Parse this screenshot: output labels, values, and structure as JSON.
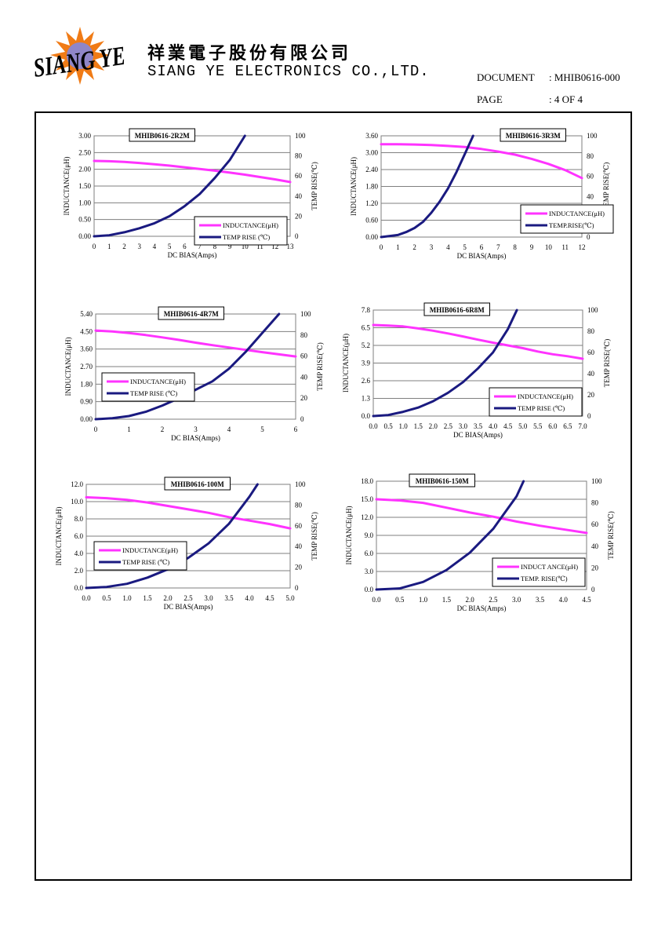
{
  "header": {
    "logo_text": "SIANG YE",
    "company_cn": "祥業電子股份有限公司",
    "company_en": "SIANG YE ELECTRONICS CO.,LTD.",
    "document_label": "DOCUMENT",
    "document_value": ": MHIB0616-000",
    "page_label": "PAGE",
    "page_value": ": 4 OF 4"
  },
  "colors": {
    "inductance": "#ff33ff",
    "temp": "#1a1a80",
    "grid": "#7f7f7f",
    "border": "#000000"
  },
  "chart_data": [
    {
      "type": "line",
      "title": "MHIB0616-2R2M",
      "xlabel": "DC BIAS(Amps)",
      "ylabel": "INDUCTANCE(μH)",
      "y2label": "TEMP RISE(℃)",
      "xlim": [
        0,
        13
      ],
      "xticks": [
        "0",
        "1",
        "2",
        "3",
        "4",
        "5",
        "6",
        "7",
        "8",
        "9",
        "10",
        "11",
        "12",
        "13"
      ],
      "ylim": [
        0,
        3
      ],
      "yticks": [
        "0.00",
        "0.50",
        "1.00",
        "1.50",
        "2.00",
        "2.50",
        "3.00"
      ],
      "y2lim": [
        0,
        100
      ],
      "y2ticks": [
        "0",
        "20",
        "40",
        "60",
        "80",
        "100"
      ],
      "grid": true,
      "legend_position": "bottom-right",
      "series": [
        {
          "name": "INDUCTANCE(μH)",
          "axis": "left",
          "x": [
            0,
            1,
            2,
            3,
            4,
            5,
            6,
            7,
            8,
            9,
            10,
            11,
            12,
            13
          ],
          "y": [
            2.25,
            2.24,
            2.22,
            2.19,
            2.15,
            2.11,
            2.06,
            2.01,
            1.96,
            1.9,
            1.84,
            1.77,
            1.7,
            1.62
          ]
        },
        {
          "name": "TEMP RISE (℃)",
          "axis": "right",
          "x": [
            0,
            1,
            2,
            3,
            4,
            5,
            6,
            7,
            8,
            9,
            10
          ],
          "y": [
            0,
            1,
            4,
            8,
            13,
            20,
            30,
            42,
            58,
            76,
            100
          ]
        }
      ]
    },
    {
      "type": "line",
      "title": "MHIB0616-3R3M",
      "xlabel": "DC BIAS(Amps)",
      "ylabel": "INDUCTANCE(μH)",
      "y2label": "TEMP RISE(℃)",
      "xlim": [
        0,
        12
      ],
      "xticks": [
        "0",
        "1",
        "2",
        "3",
        "4",
        "5",
        "6",
        "7",
        "8",
        "9",
        "10",
        "11",
        "12"
      ],
      "ylim": [
        0,
        3.6
      ],
      "yticks": [
        "0.00",
        "0.60",
        "1.20",
        "1.80",
        "2.40",
        "3.00",
        "3.60"
      ],
      "y2lim": [
        0,
        100
      ],
      "y2ticks": [
        "0",
        "20",
        "40",
        "60",
        "80",
        "100"
      ],
      "grid": true,
      "legend_position": "bottom-right",
      "series": [
        {
          "name": "INDUCTANCE(μH)",
          "axis": "left",
          "x": [
            0,
            1,
            2,
            3,
            4,
            5,
            6,
            7,
            8,
            9,
            10,
            11,
            12
          ],
          "y": [
            3.3,
            3.3,
            3.29,
            3.27,
            3.24,
            3.2,
            3.13,
            3.04,
            2.93,
            2.78,
            2.6,
            2.38,
            2.1
          ]
        },
        {
          "name": "TEMP.RISE(℃)",
          "axis": "right",
          "x": [
            0,
            1,
            1.5,
            2,
            2.5,
            3,
            3.5,
            4,
            4.5,
            5,
            5.5
          ],
          "y": [
            0,
            2,
            5,
            9,
            15,
            24,
            35,
            48,
            64,
            82,
            100
          ]
        }
      ]
    },
    {
      "type": "line",
      "title": "MHIB0616-4R7M",
      "xlabel": "DC BIAS(Amps)",
      "ylabel": "INDUCTANCE(μH)",
      "y2label": "TEMP RISE(℃)",
      "xlim": [
        0,
        6
      ],
      "xticks": [
        "0",
        "1",
        "2",
        "3",
        "4",
        "5",
        "6"
      ],
      "ylim": [
        0,
        5.4
      ],
      "yticks": [
        "0.00",
        "0.90",
        "1.80",
        "2.70",
        "3.60",
        "4.50",
        "5.40"
      ],
      "y2lim": [
        0,
        100
      ],
      "y2ticks": [
        "0",
        "20",
        "40",
        "60",
        "80",
        "100"
      ],
      "grid": true,
      "legend_position": "bottom-left",
      "series": [
        {
          "name": "INDUCTANCE(μH)",
          "axis": "left",
          "x": [
            0,
            0.5,
            1,
            1.5,
            2,
            2.5,
            3,
            3.5,
            4,
            4.5,
            5,
            5.5,
            6
          ],
          "y": [
            4.55,
            4.5,
            4.42,
            4.32,
            4.2,
            4.07,
            3.93,
            3.8,
            3.68,
            3.56,
            3.44,
            3.33,
            3.22
          ]
        },
        {
          "name": "TEMP RISE (℃)",
          "axis": "right",
          "x": [
            0,
            0.5,
            1,
            1.5,
            2,
            2.5,
            3,
            3.5,
            4,
            4.5,
            5,
            5.5
          ],
          "y": [
            0,
            1,
            3,
            7,
            13,
            20,
            28,
            36,
            48,
            64,
            82,
            100
          ]
        }
      ]
    },
    {
      "type": "line",
      "title": "MHIB0616-6R8M",
      "xlabel": "DC BIAS(Amps)",
      "ylabel": "INDUCTANCE(μH)",
      "y2label": "TEMP RISE(℃)",
      "xlim": [
        0,
        7
      ],
      "xticks": [
        "0.0",
        "0.5",
        "1.0",
        "1.5",
        "2.0",
        "2.5",
        "3.0",
        "3.5",
        "4.0",
        "4.5",
        "5.0",
        "5.5",
        "6.0",
        "6.5",
        "7.0"
      ],
      "ylim": [
        0,
        7.8
      ],
      "yticks": [
        "0.0",
        "1.3",
        "2.6",
        "3.9",
        "5.2",
        "6.5",
        "7.8"
      ],
      "y2lim": [
        0,
        100
      ],
      "y2ticks": [
        "0",
        "20",
        "40",
        "60",
        "80",
        "100"
      ],
      "grid": true,
      "legend_position": "bottom-right",
      "series": [
        {
          "name": "INDUCTANCE(μH)",
          "axis": "left",
          "x": [
            0,
            0.5,
            1,
            1.5,
            2,
            2.5,
            3,
            3.5,
            4,
            4.5,
            5,
            5.5,
            6,
            6.5,
            7
          ],
          "y": [
            6.7,
            6.66,
            6.6,
            6.45,
            6.28,
            6.08,
            5.86,
            5.62,
            5.4,
            5.2,
            5.0,
            4.75,
            4.55,
            4.4,
            4.22
          ]
        },
        {
          "name": "TEMP RISE (℃)",
          "axis": "right",
          "x": [
            0,
            0.5,
            1,
            1.5,
            2,
            2.5,
            3,
            3.5,
            4,
            4.5,
            4.8
          ],
          "y": [
            0,
            1,
            4,
            8,
            14,
            22,
            32,
            45,
            60,
            82,
            100
          ]
        }
      ]
    },
    {
      "type": "line",
      "title": "MHIB0616-100M",
      "xlabel": "DC BIAS(Amps)",
      "ylabel": "INDUCTANCE(μH)",
      "y2label": "TEMP RISE(℃)",
      "xlim": [
        0,
        5
      ],
      "xticks": [
        "0.0",
        "0.5",
        "1.0",
        "1.5",
        "2.0",
        "2.5",
        "3.0",
        "3.5",
        "4.0",
        "4.5",
        "5.0"
      ],
      "ylim": [
        0,
        12
      ],
      "yticks": [
        "0.0",
        "2.0",
        "4.0",
        "6.0",
        "8.0",
        "10.0",
        "12.0"
      ],
      "y2lim": [
        0,
        100
      ],
      "y2ticks": [
        "0",
        "20",
        "40",
        "60",
        "80",
        "100"
      ],
      "grid": true,
      "legend_position": "bottom-left",
      "series": [
        {
          "name": "INDUCTANCE(μH)",
          "axis": "left",
          "x": [
            0,
            0.5,
            1,
            1.5,
            2,
            2.5,
            3,
            3.5,
            4,
            4.5,
            5
          ],
          "y": [
            10.5,
            10.4,
            10.2,
            9.9,
            9.5,
            9.1,
            8.7,
            8.2,
            7.8,
            7.4,
            6.9
          ]
        },
        {
          "name": "TEMP RISE (℃)",
          "axis": "right",
          "x": [
            0,
            0.5,
            1,
            1.5,
            2,
            2.5,
            3,
            3.5,
            4,
            4.2
          ],
          "y": [
            0,
            1,
            4,
            10,
            18,
            29,
            43,
            62,
            88,
            100
          ]
        }
      ]
    },
    {
      "type": "line",
      "title": "MHIB0616-150M",
      "xlabel": "DC BIAS(Amps)",
      "ylabel": "INDUCTANCE(μH)",
      "y2label": "TEMP RISE(℃)",
      "xlim": [
        0,
        4.5
      ],
      "xticks": [
        "0.0",
        "0.5",
        "1.0",
        "1.5",
        "2.0",
        "2.5",
        "3.0",
        "3.5",
        "4.0",
        "4.5"
      ],
      "ylim": [
        0,
        18
      ],
      "yticks": [
        "0.0",
        "3.0",
        "6.0",
        "9.0",
        "12.0",
        "15.0",
        "18.0"
      ],
      "y2lim": [
        0,
        100
      ],
      "y2ticks": [
        "0",
        "20",
        "40",
        "60",
        "80",
        "100"
      ],
      "grid": true,
      "legend_position": "bottom-right",
      "series": [
        {
          "name": "INDUCT ANCE(μH)",
          "axis": "left",
          "x": [
            0,
            0.5,
            1,
            1.5,
            2,
            2.5,
            3,
            3.5,
            4,
            4.5
          ],
          "y": [
            15.0,
            14.8,
            14.4,
            13.6,
            12.8,
            12.1,
            11.3,
            10.6,
            10.0,
            9.4
          ]
        },
        {
          "name": "TEMP. RISE(℃)",
          "axis": "right",
          "x": [
            0,
            0.5,
            1,
            1.5,
            2,
            2.5,
            3,
            3.15
          ],
          "y": [
            0,
            1,
            7,
            18,
            34,
            56,
            86,
            100
          ]
        }
      ]
    }
  ]
}
